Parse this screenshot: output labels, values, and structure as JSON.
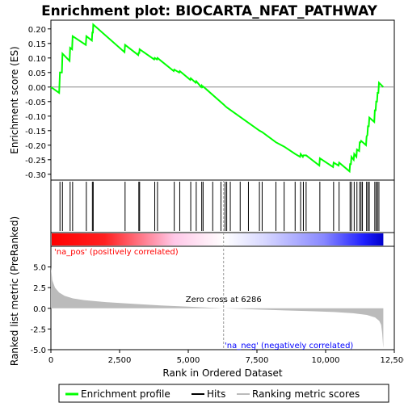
{
  "chart_data": {
    "type": "line",
    "title": "Enrichment plot: BIOCARTA_NFAT_PATHWAY",
    "xlabel": "Rank in Ordered Dataset",
    "ylabel_top": "Enrichment score (ES)",
    "ylabel_bottom": "Ranked list metric (PreRanked)",
    "xlim": [
      0,
      12500
    ],
    "es_ylim": [
      -0.32,
      0.23
    ],
    "metric_ylim": [
      -5,
      7.5
    ],
    "x_ticks": [
      0,
      2500,
      5000,
      7500,
      10000,
      12500
    ],
    "x_tick_labels": [
      "0",
      "2,500",
      "5,000",
      "7,500",
      "10,000",
      "12,500"
    ],
    "es_ticks": [
      0.2,
      0.15,
      0.1,
      0.05,
      0.0,
      -0.05,
      -0.1,
      -0.15,
      -0.2,
      -0.25,
      -0.3
    ],
    "es_tick_labels": [
      "0.20",
      "0.15",
      "0.10",
      "0.05",
      "0.00",
      "-0.05",
      "-0.10",
      "-0.15",
      "-0.20",
      "-0.25",
      "-0.30"
    ],
    "metric_ticks": [
      5.0,
      2.5,
      0.0,
      -2.5,
      -5.0
    ],
    "metric_tick_labels": [
      "5.0",
      "2.5",
      "0.0",
      "-2.5",
      "-5.0"
    ],
    "n_genes": 12100,
    "zero_cross_rank": 6286,
    "annotations": {
      "zero_cross": "Zero cross at 6286",
      "pos_label": "'na_pos' (positively correlated)",
      "neg_label": "'na_neg' (negatively correlated)"
    },
    "legend": {
      "position": "bottom",
      "entries": [
        {
          "label": "Enrichment profile",
          "color": "#00ff00"
        },
        {
          "label": "Hits",
          "color": "#000000"
        },
        {
          "label": "Ranking metric scores",
          "color": "#bbbbbb"
        }
      ]
    },
    "hits": [
      330,
      420,
      700,
      790,
      1290,
      1510,
      1540,
      2700,
      3200,
      3230,
      3780,
      3880,
      4490,
      4690,
      5090,
      5290,
      5490,
      5540,
      5890,
      6190,
      6340,
      6400,
      6530,
      6890,
      7190,
      7590,
      7690,
      8190,
      8490,
      8890,
      9090,
      9190,
      9290,
      9790,
      10290,
      10490,
      10890,
      10940,
      11040,
      11140,
      11240,
      11290,
      11340,
      11490,
      11540,
      11590,
      11790,
      11840,
      11890,
      11940
    ],
    "es_curve": [
      [
        0,
        0.0
      ],
      [
        300,
        -0.02
      ],
      [
        330,
        0.05
      ],
      [
        400,
        0.05
      ],
      [
        420,
        0.115
      ],
      [
        680,
        0.09
      ],
      [
        700,
        0.135
      ],
      [
        770,
        0.13
      ],
      [
        790,
        0.175
      ],
      [
        1270,
        0.145
      ],
      [
        1290,
        0.175
      ],
      [
        1490,
        0.16
      ],
      [
        1510,
        0.19
      ],
      [
        1530,
        0.185
      ],
      [
        1540,
        0.215
      ],
      [
        2680,
        0.12
      ],
      [
        2700,
        0.145
      ],
      [
        3180,
        0.11
      ],
      [
        3200,
        0.12
      ],
      [
        3215,
        0.115
      ],
      [
        3230,
        0.13
      ],
      [
        3760,
        0.095
      ],
      [
        3780,
        0.1
      ],
      [
        3860,
        0.095
      ],
      [
        3880,
        0.1
      ],
      [
        4470,
        0.055
      ],
      [
        4490,
        0.06
      ],
      [
        4670,
        0.05
      ],
      [
        4690,
        0.055
      ],
      [
        5070,
        0.025
      ],
      [
        5090,
        0.03
      ],
      [
        5270,
        0.015
      ],
      [
        5290,
        0.02
      ],
      [
        5470,
        0.0
      ],
      [
        5490,
        0.005
      ],
      [
        5520,
        0.0
      ],
      [
        5540,
        0.002
      ],
      [
        6286,
        -0.06
      ],
      [
        6340,
        -0.065
      ],
      [
        6400,
        -0.07
      ],
      [
        7590,
        -0.15
      ],
      [
        7690,
        -0.155
      ],
      [
        8190,
        -0.19
      ],
      [
        8490,
        -0.205
      ],
      [
        8890,
        -0.23
      ],
      [
        9070,
        -0.24
      ],
      [
        9090,
        -0.23
      ],
      [
        9170,
        -0.24
      ],
      [
        9190,
        -0.235
      ],
      [
        9290,
        -0.235
      ],
      [
        9770,
        -0.27
      ],
      [
        9790,
        -0.245
      ],
      [
        10270,
        -0.275
      ],
      [
        10290,
        -0.26
      ],
      [
        10470,
        -0.27
      ],
      [
        10490,
        -0.26
      ],
      [
        10870,
        -0.29
      ],
      [
        10890,
        -0.265
      ],
      [
        10920,
        -0.265
      ],
      [
        10940,
        -0.24
      ],
      [
        11020,
        -0.25
      ],
      [
        11040,
        -0.23
      ],
      [
        11120,
        -0.24
      ],
      [
        11140,
        -0.215
      ],
      [
        11220,
        -0.22
      ],
      [
        11240,
        -0.19
      ],
      [
        11270,
        -0.19
      ],
      [
        11290,
        -0.185
      ],
      [
        11470,
        -0.2
      ],
      [
        11490,
        -0.17
      ],
      [
        11520,
        -0.165
      ],
      [
        11540,
        -0.135
      ],
      [
        11570,
        -0.135
      ],
      [
        11590,
        -0.105
      ],
      [
        11770,
        -0.12
      ],
      [
        11790,
        -0.08
      ],
      [
        11820,
        -0.08
      ],
      [
        11840,
        -0.05
      ],
      [
        11870,
        -0.05
      ],
      [
        11890,
        -0.02
      ],
      [
        11920,
        -0.02
      ],
      [
        11940,
        0.015
      ],
      [
        12100,
        0.0
      ]
    ],
    "metric_curve": [
      [
        0,
        5.0
      ],
      [
        50,
        3.4
      ],
      [
        150,
        2.5
      ],
      [
        300,
        1.9
      ],
      [
        500,
        1.5
      ],
      [
        800,
        1.2
      ],
      [
        1200,
        1.0
      ],
      [
        2000,
        0.75
      ],
      [
        3000,
        0.55
      ],
      [
        4000,
        0.35
      ],
      [
        5000,
        0.2
      ],
      [
        6286,
        0.0
      ],
      [
        7500,
        -0.15
      ],
      [
        8500,
        -0.25
      ],
      [
        9500,
        -0.35
      ],
      [
        10300,
        -0.45
      ],
      [
        11000,
        -0.6
      ],
      [
        11500,
        -0.8
      ],
      [
        11800,
        -1.1
      ],
      [
        11950,
        -1.5
      ],
      [
        12020,
        -2.0
      ],
      [
        12060,
        -3.0
      ],
      [
        12090,
        -4.5
      ],
      [
        12100,
        -4.8
      ]
    ],
    "colors": {
      "es_line": "#00ff00",
      "hit": "#000000",
      "metric_fill": "#bbbbbb",
      "zero_cross_line": "#999999",
      "pos_label": "#ff0000",
      "neg_label": "#0000ff",
      "bar_pos": "#ff0000",
      "bar_neg": "#0000ff"
    }
  }
}
